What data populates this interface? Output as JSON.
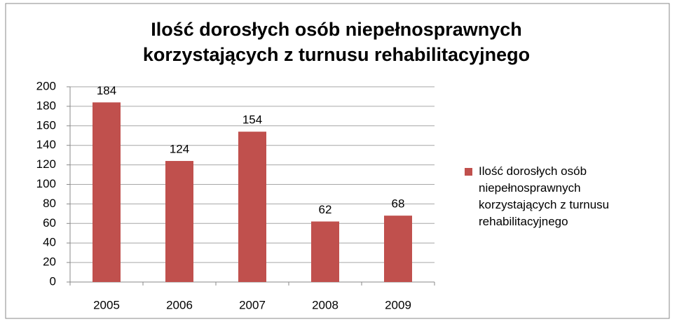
{
  "chart_data": {
    "type": "bar",
    "title": "Ilość dorosłych osób niepełnosprawnych korzystających z turnusu rehabilitacyjnego",
    "categories": [
      "2005",
      "2006",
      "2007",
      "2008",
      "2009"
    ],
    "series": [
      {
        "name": "Ilość dorosłych osób niepełnosprawnych korzystających z turnusu rehabilitacyjnego",
        "color": "#c0504d",
        "values": [
          184,
          124,
          154,
          62,
          68
        ]
      }
    ],
    "ylim": [
      0,
      200
    ],
    "yticks": [
      0,
      20,
      40,
      60,
      80,
      100,
      120,
      140,
      160,
      180,
      200
    ],
    "grid": true,
    "legend": "right"
  }
}
